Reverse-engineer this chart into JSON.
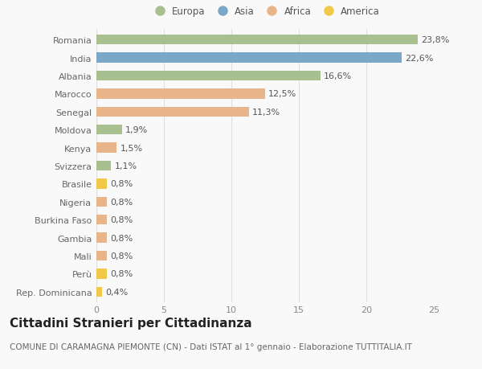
{
  "countries": [
    "Romania",
    "India",
    "Albania",
    "Marocco",
    "Senegal",
    "Moldova",
    "Kenya",
    "Svizzera",
    "Brasile",
    "Nigeria",
    "Burkina Faso",
    "Gambia",
    "Mali",
    "Perù",
    "Rep. Dominicana"
  ],
  "values": [
    23.8,
    22.6,
    16.6,
    12.5,
    11.3,
    1.9,
    1.5,
    1.1,
    0.8,
    0.8,
    0.8,
    0.8,
    0.8,
    0.8,
    0.4
  ],
  "labels": [
    "23,8%",
    "22,6%",
    "16,6%",
    "12,5%",
    "11,3%",
    "1,9%",
    "1,5%",
    "1,1%",
    "0,8%",
    "0,8%",
    "0,8%",
    "0,8%",
    "0,8%",
    "0,8%",
    "0,4%"
  ],
  "continents": [
    "Europa",
    "Asia",
    "Europa",
    "Africa",
    "Africa",
    "Europa",
    "Africa",
    "Europa",
    "America",
    "Africa",
    "Africa",
    "Africa",
    "Africa",
    "America",
    "America"
  ],
  "continent_colors": {
    "Europa": "#a8c090",
    "Asia": "#7ba7c8",
    "Africa": "#e8b48a",
    "America": "#f0c84a"
  },
  "legend_order": [
    "Europa",
    "Asia",
    "Africa",
    "America"
  ],
  "title": "Cittadini Stranieri per Cittadinanza",
  "subtitle": "COMUNE DI CARAMAGNA PIEMONTE (CN) - Dati ISTAT al 1° gennaio - Elaborazione TUTTITALIA.IT",
  "xlim": [
    0,
    25
  ],
  "xticks": [
    0,
    5,
    10,
    15,
    20,
    25
  ],
  "background_color": "#f9f9f9",
  "grid_color": "#e0e0e0",
  "label_fontsize": 8,
  "title_fontsize": 11,
  "subtitle_fontsize": 7.5,
  "country_fontsize": 8,
  "xtick_fontsize": 8
}
